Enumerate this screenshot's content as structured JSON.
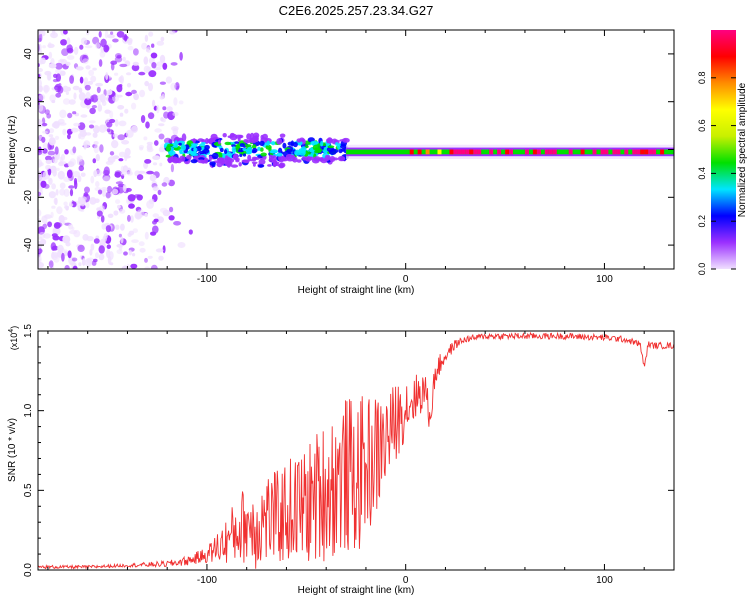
{
  "figure_title": "C2E6.2025.257.23.34.G27",
  "chart_data": [
    {
      "type": "heatmap",
      "title": "C2E6.2025.257.23.34.G27",
      "xlabel": "Height of straight line (km)",
      "ylabel": "Frequency (Hz)",
      "xlim": [
        -185,
        135
      ],
      "ylim": [
        -50,
        50
      ],
      "xticks": [
        -100,
        0,
        100
      ],
      "yticks": [
        -40,
        -20,
        0,
        20,
        40
      ],
      "xtick_labels": [
        "-100",
        "0",
        "100"
      ],
      "ytick_labels": [
        "-40",
        "-20",
        "0",
        "20",
        "40"
      ],
      "colorbar": {
        "label": "Normalized spectral amplitude",
        "range": [
          0,
          1
        ],
        "ticks": [
          0.0,
          0.2,
          0.4,
          0.6,
          0.8
        ],
        "tick_labels": [
          "0.0",
          "0.2",
          "0.4",
          "0.6",
          "0.8"
        ],
        "colormap": [
          "#f0e0ff",
          "#9b30ff",
          "#0000ff",
          "#00e5ff",
          "#00e000",
          "#c8f000",
          "#ffff00",
          "#ff8c00",
          "#ff0000",
          "#ff0080"
        ]
      },
      "regions": [
        {
          "name": "diffuse noise",
          "x_range": [
            -185,
            -105
          ],
          "freq_range": [
            -50,
            50
          ],
          "amplitude": 0.2
        },
        {
          "name": "scattered carrier",
          "x_range": [
            -120,
            -30
          ],
          "freq_range": [
            -7,
            6
          ],
          "amplitude": 0.4
        },
        {
          "name": "stable carrier",
          "x_range": [
            -30,
            135
          ],
          "freq_range": [
            -2,
            0
          ],
          "amplitude": 0.95
        }
      ]
    },
    {
      "type": "line",
      "title": "",
      "xlabel": "Height of straight line (km)",
      "ylabel": "SNR (10 * v/v)",
      "scale_label": "(x10",
      "scale_exp": "4",
      "xlim": [
        -185,
        135
      ],
      "ylim": [
        0,
        1.5
      ],
      "xticks": [
        -100,
        0,
        100
      ],
      "yticks": [
        0.0,
        0.5,
        1.0,
        1.5
      ],
      "xtick_labels": [
        "-100",
        "0",
        "100"
      ],
      "ytick_labels": [
        "0.0",
        "0.5",
        "1.0",
        "1.5"
      ],
      "series": [
        {
          "name": "SNR",
          "color": "#f03030",
          "x": [
            -185,
            -160,
            -140,
            -120,
            -110,
            -100,
            -90,
            -85,
            -80,
            -75,
            -70,
            -65,
            -60,
            -55,
            -50,
            -45,
            -40,
            -35,
            -30,
            -25,
            -20,
            -15,
            -10,
            -5,
            0,
            5,
            10,
            12,
            15,
            20,
            25,
            30,
            40,
            60,
            80,
            100,
            110,
            118,
            120,
            122,
            125,
            135
          ],
          "y": [
            0.02,
            0.02,
            0.03,
            0.04,
            0.06,
            0.1,
            0.2,
            0.27,
            0.32,
            0.3,
            0.36,
            0.35,
            0.4,
            0.42,
            0.44,
            0.5,
            0.55,
            0.6,
            0.65,
            0.62,
            0.7,
            0.75,
            0.85,
            0.95,
            1.05,
            1.1,
            1.15,
            0.95,
            1.25,
            1.35,
            1.42,
            1.45,
            1.47,
            1.47,
            1.47,
            1.46,
            1.45,
            1.42,
            1.27,
            1.42,
            1.41,
            1.41
          ],
          "noise_amplitude": [
            0.01,
            0.01,
            0.01,
            0.02,
            0.03,
            0.05,
            0.15,
            0.22,
            0.25,
            0.28,
            0.3,
            0.3,
            0.33,
            0.35,
            0.38,
            0.42,
            0.45,
            0.48,
            0.5,
            0.5,
            0.45,
            0.4,
            0.3,
            0.25,
            0.2,
            0.15,
            0.12,
            0.1,
            0.08,
            0.05,
            0.03,
            0.02,
            0.02,
            0.02,
            0.02,
            0.02,
            0.02,
            0.02,
            0.02,
            0.02,
            0.02,
            0.02
          ]
        }
      ]
    }
  ]
}
